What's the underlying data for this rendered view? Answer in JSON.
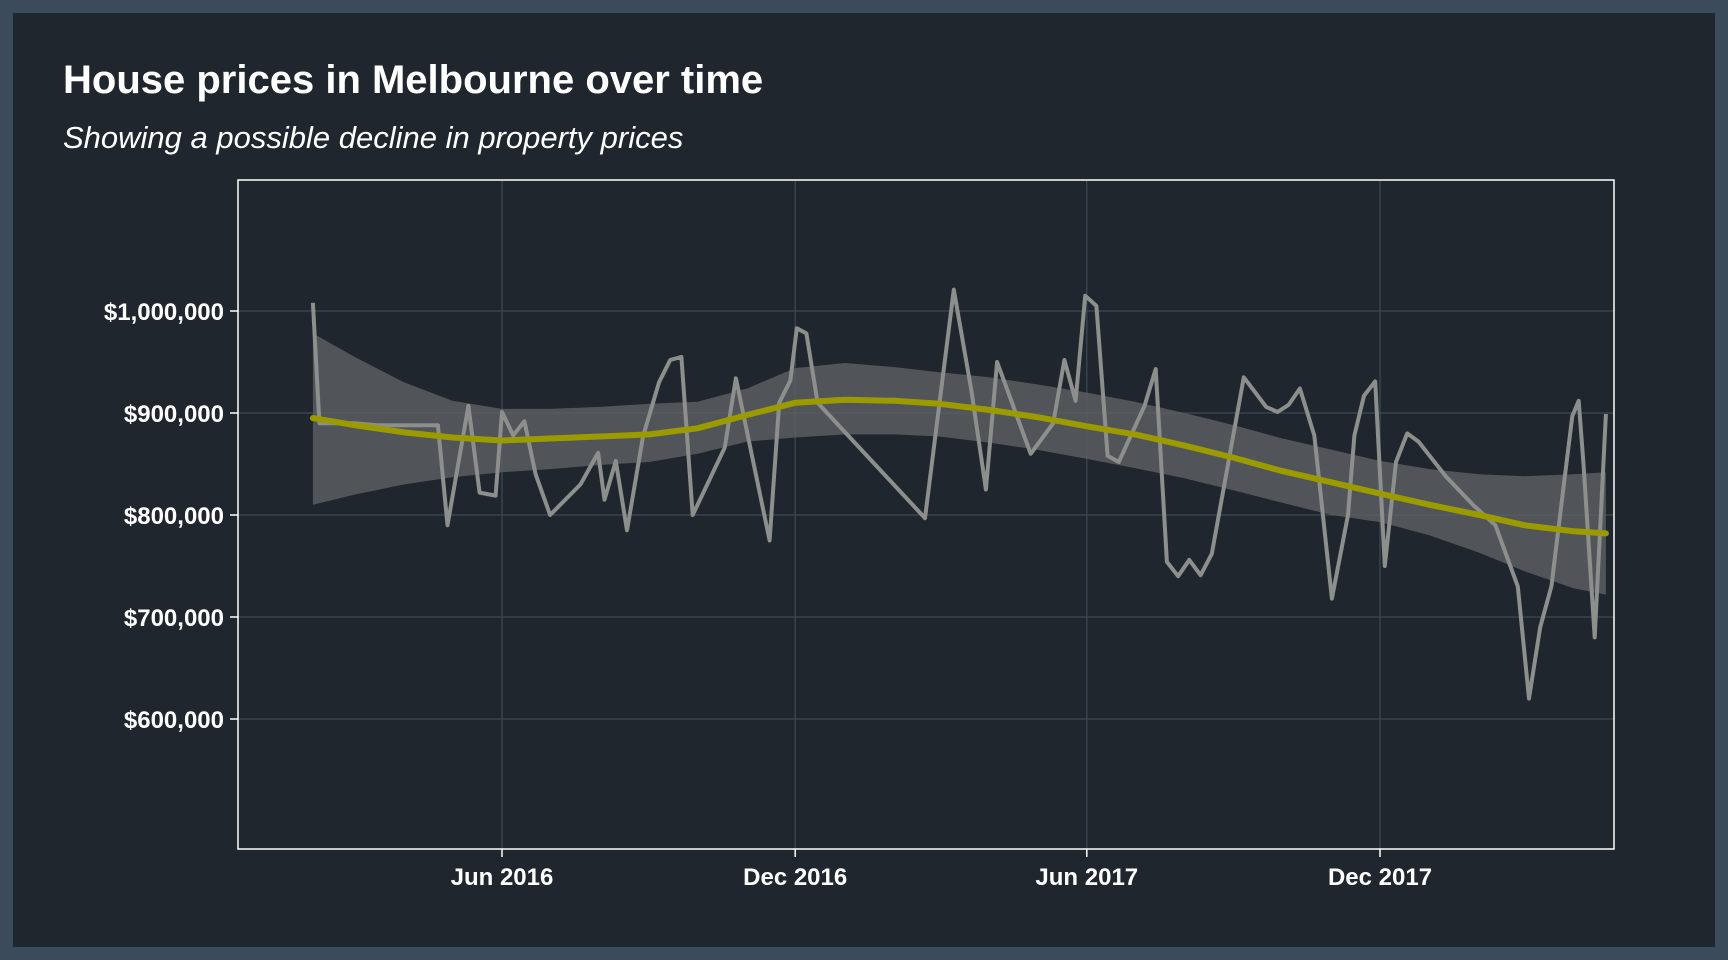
{
  "chart_data": {
    "type": "line",
    "title": "House prices in Melbourne over time",
    "subtitle": "Showing a possible decline in property prices",
    "xlabel": "",
    "ylabel": "",
    "x_range": [
      "2016-01-23",
      "2018-04-07"
    ],
    "ylim": [
      470000,
      1130000
    ],
    "x_ticks": [
      {
        "date": "2016-06-01",
        "label": "Jun 2016"
      },
      {
        "date": "2016-12-01",
        "label": "Dec 2016"
      },
      {
        "date": "2017-06-01",
        "label": "Jun 2017"
      },
      {
        "date": "2017-12-01",
        "label": "Dec 2017"
      }
    ],
    "y_ticks": [
      {
        "value": 1000000,
        "label": "$1,000,000"
      },
      {
        "value": 900000,
        "label": "$900,000"
      },
      {
        "value": 800000,
        "label": "$800,000"
      },
      {
        "value": 700000,
        "label": "$700,000"
      },
      {
        "value": 600000,
        "label": "$600,000"
      }
    ],
    "grid": true,
    "colors": {
      "background": "#1f262e",
      "border": "#3b4b5c",
      "raw_line": "#8c8f8c",
      "trend_line": "#9b9b00",
      "confidence_band": "#5a5e61",
      "grid": "#3c4a56"
    },
    "series": [
      {
        "role": "raw",
        "points": [
          [
            "2016-02-04",
            1008000
          ],
          [
            "2016-02-08",
            890000
          ],
          [
            "2016-02-15",
            890000
          ],
          [
            "2016-03-01",
            890000
          ],
          [
            "2016-03-15",
            888000
          ],
          [
            "2016-04-01",
            888000
          ],
          [
            "2016-04-15",
            888000
          ],
          [
            "2016-04-22",
            888000
          ],
          [
            "2016-04-28",
            790000
          ],
          [
            "2016-05-11",
            907000
          ],
          [
            "2016-05-18",
            822000
          ],
          [
            "2016-05-28",
            819000
          ],
          [
            "2016-06-01",
            901000
          ],
          [
            "2016-06-08",
            878000
          ],
          [
            "2016-06-15",
            892000
          ],
          [
            "2016-06-22",
            840000
          ],
          [
            "2016-07-01",
            800000
          ],
          [
            "2016-07-20",
            830000
          ],
          [
            "2016-07-31",
            861000
          ],
          [
            "2016-08-04",
            815000
          ],
          [
            "2016-08-11",
            853000
          ],
          [
            "2016-08-18",
            785000
          ],
          [
            "2016-08-28",
            877000
          ],
          [
            "2016-09-07",
            930000
          ],
          [
            "2016-09-14",
            952000
          ],
          [
            "2016-09-21",
            955000
          ],
          [
            "2016-09-28",
            800000
          ],
          [
            "2016-10-18",
            866000
          ],
          [
            "2016-10-25",
            934000
          ],
          [
            "2016-11-15",
            775000
          ],
          [
            "2016-11-21",
            910000
          ],
          [
            "2016-11-28",
            932000
          ],
          [
            "2016-12-02",
            983000
          ],
          [
            "2016-12-08",
            978000
          ],
          [
            "2016-12-15",
            910000
          ],
          [
            "2017-02-20",
            797000
          ],
          [
            "2017-03-10",
            1021000
          ],
          [
            "2017-03-21",
            922000
          ],
          [
            "2017-03-30",
            825000
          ],
          [
            "2017-04-06",
            950000
          ],
          [
            "2017-04-27",
            860000
          ],
          [
            "2017-05-11",
            890000
          ],
          [
            "2017-05-18",
            952000
          ],
          [
            "2017-05-25",
            912000
          ],
          [
            "2017-05-31",
            1015000
          ],
          [
            "2017-06-07",
            1005000
          ],
          [
            "2017-06-14",
            858000
          ],
          [
            "2017-06-21",
            852000
          ],
          [
            "2017-07-07",
            907000
          ],
          [
            "2017-07-14",
            943000
          ],
          [
            "2017-07-21",
            754000
          ],
          [
            "2017-07-28",
            740000
          ],
          [
            "2017-08-04",
            756000
          ],
          [
            "2017-08-11",
            741000
          ],
          [
            "2017-08-18",
            762000
          ],
          [
            "2017-09-07",
            935000
          ],
          [
            "2017-09-21",
            906000
          ],
          [
            "2017-09-28",
            901000
          ],
          [
            "2017-10-05",
            908000
          ],
          [
            "2017-10-12",
            924000
          ],
          [
            "2017-10-21",
            878000
          ],
          [
            "2017-11-01",
            718000
          ],
          [
            "2017-11-11",
            800000
          ],
          [
            "2017-11-15",
            878000
          ],
          [
            "2017-11-21",
            917000
          ],
          [
            "2017-11-28",
            931000
          ],
          [
            "2017-12-04",
            750000
          ],
          [
            "2017-12-11",
            852000
          ],
          [
            "2017-12-18",
            880000
          ],
          [
            "2017-12-25",
            872000
          ],
          [
            "2018-01-11",
            838000
          ],
          [
            "2018-01-28",
            810000
          ],
          [
            "2018-02-11",
            790000
          ],
          [
            "2018-02-25",
            730000
          ],
          [
            "2018-03-04",
            620000
          ],
          [
            "2018-03-11",
            690000
          ],
          [
            "2018-03-18",
            730000
          ],
          [
            "2018-03-25",
            820000
          ],
          [
            "2018-03-31",
            897000
          ],
          [
            "2018-04-04",
            912000
          ],
          [
            "2018-04-07",
            850000
          ],
          [
            "2018-04-14",
            680000
          ],
          [
            "2018-04-21",
            899000
          ]
        ]
      },
      {
        "role": "smooth",
        "points": [
          [
            "2016-02-04",
            895000
          ],
          [
            "2016-03-01",
            888000
          ],
          [
            "2016-04-01",
            881000
          ],
          [
            "2016-05-01",
            876000
          ],
          [
            "2016-06-01",
            873000
          ],
          [
            "2016-07-01",
            875000
          ],
          [
            "2016-08-01",
            877000
          ],
          [
            "2016-09-01",
            879000
          ],
          [
            "2016-10-01",
            885000
          ],
          [
            "2016-11-01",
            898000
          ],
          [
            "2016-12-01",
            910000
          ],
          [
            "2017-01-01",
            913000
          ],
          [
            "2017-02-01",
            912000
          ],
          [
            "2017-03-01",
            909000
          ],
          [
            "2017-04-01",
            903000
          ],
          [
            "2017-05-01",
            896000
          ],
          [
            "2017-06-01",
            887000
          ],
          [
            "2017-07-01",
            879000
          ],
          [
            "2017-08-01",
            868000
          ],
          [
            "2017-09-01",
            856000
          ],
          [
            "2017-10-01",
            843000
          ],
          [
            "2017-11-01",
            832000
          ],
          [
            "2017-12-01",
            821000
          ],
          [
            "2018-01-01",
            810000
          ],
          [
            "2018-02-01",
            800000
          ],
          [
            "2018-03-01",
            790000
          ],
          [
            "2018-04-01",
            784000
          ],
          [
            "2018-04-21",
            782000
          ]
        ]
      },
      {
        "role": "confidence_band",
        "points": [
          [
            "2016-02-04",
            810000,
            978000
          ],
          [
            "2016-03-01",
            820000,
            955000
          ],
          [
            "2016-04-01",
            830000,
            930000
          ],
          [
            "2016-05-01",
            837000,
            912000
          ],
          [
            "2016-06-01",
            842000,
            904000
          ],
          [
            "2016-07-01",
            845000,
            904000
          ],
          [
            "2016-08-01",
            849000,
            906000
          ],
          [
            "2016-09-01",
            852000,
            909000
          ],
          [
            "2016-10-01",
            860000,
            911000
          ],
          [
            "2016-11-01",
            872000,
            924000
          ],
          [
            "2016-12-01",
            876000,
            944000
          ],
          [
            "2017-01-01",
            879000,
            949000
          ],
          [
            "2017-02-01",
            879000,
            945000
          ],
          [
            "2017-03-01",
            877000,
            940000
          ],
          [
            "2017-04-01",
            871000,
            935000
          ],
          [
            "2017-05-01",
            864000,
            928000
          ],
          [
            "2017-06-01",
            855000,
            920000
          ],
          [
            "2017-07-01",
            846000,
            911000
          ],
          [
            "2017-08-01",
            836000,
            900000
          ],
          [
            "2017-09-01",
            824000,
            888000
          ],
          [
            "2017-10-01",
            812000,
            875000
          ],
          [
            "2017-11-01",
            800000,
            864000
          ],
          [
            "2017-12-01",
            793000,
            853000
          ],
          [
            "2018-01-01",
            780000,
            845000
          ],
          [
            "2018-02-01",
            763000,
            840000
          ],
          [
            "2018-03-01",
            745000,
            838000
          ],
          [
            "2018-04-01",
            728000,
            840000
          ],
          [
            "2018-04-21",
            722000,
            842000
          ]
        ]
      }
    ]
  }
}
